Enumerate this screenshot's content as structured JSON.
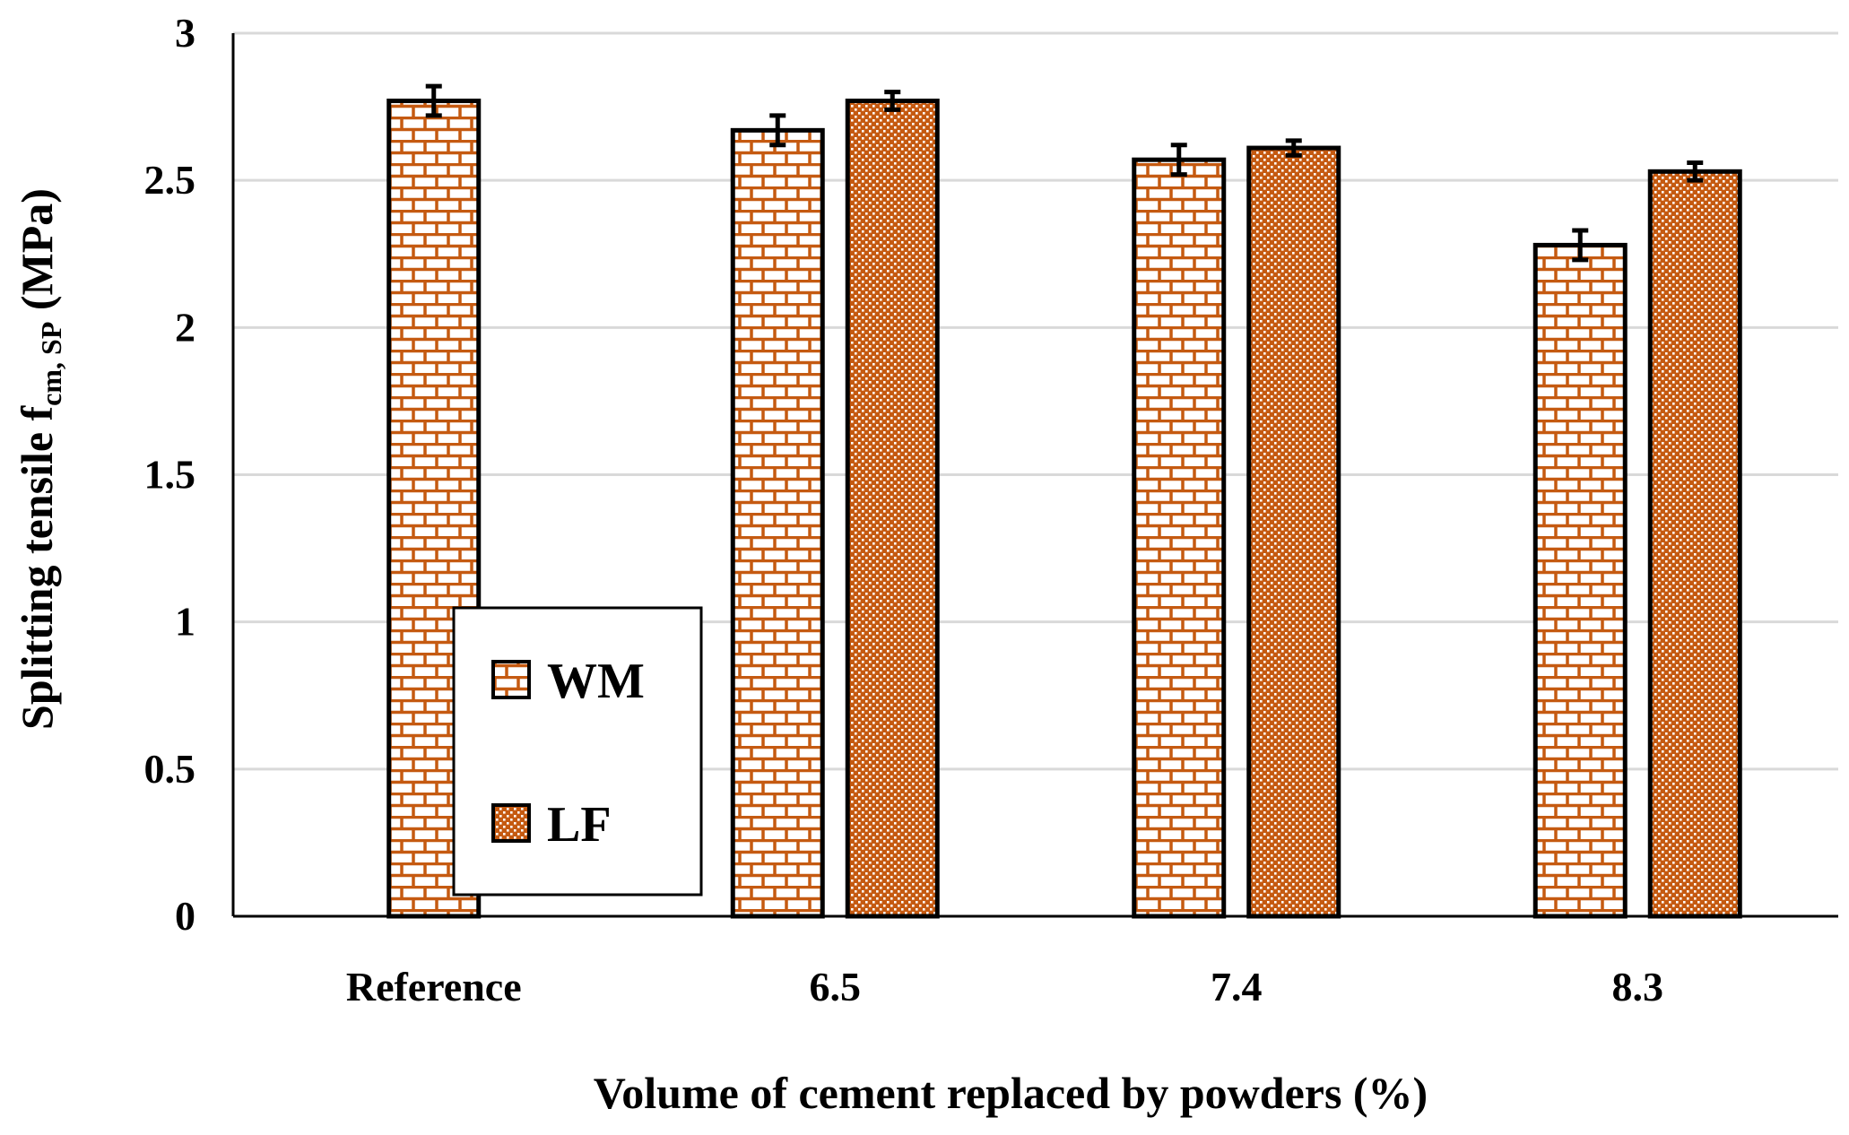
{
  "chart_data": {
    "type": "bar",
    "title": "",
    "xlabel": "Volume of cement replaced by powders (%)",
    "ylabel": {
      "main": "Splitting  tensile  f",
      "subscript": "cm, SP",
      "suffix": " (MPa)"
    },
    "ylim": [
      0,
      3
    ],
    "yticks": [
      "0",
      "0.5",
      "1",
      "1.5",
      "2",
      "2.5",
      "3"
    ],
    "grid": true,
    "legend_placement": "inside lower-left",
    "categories": [
      "Reference",
      "6.5",
      "7.4",
      "8.3"
    ],
    "series": [
      {
        "name": "WM",
        "pattern": "brick",
        "values": [
          2.77,
          2.67,
          2.57,
          2.28
        ],
        "errors": [
          0.05,
          0.05,
          0.05,
          0.05
        ]
      },
      {
        "name": "LF",
        "pattern": "dots",
        "values": [
          null,
          2.77,
          2.61,
          2.53
        ],
        "errors": [
          null,
          0.03,
          0.025,
          0.03
        ]
      }
    ]
  },
  "colors": {
    "fill": "#c55a11",
    "background": "#ffffff",
    "grid": "#d9d9d9",
    "axis": "#000000"
  }
}
